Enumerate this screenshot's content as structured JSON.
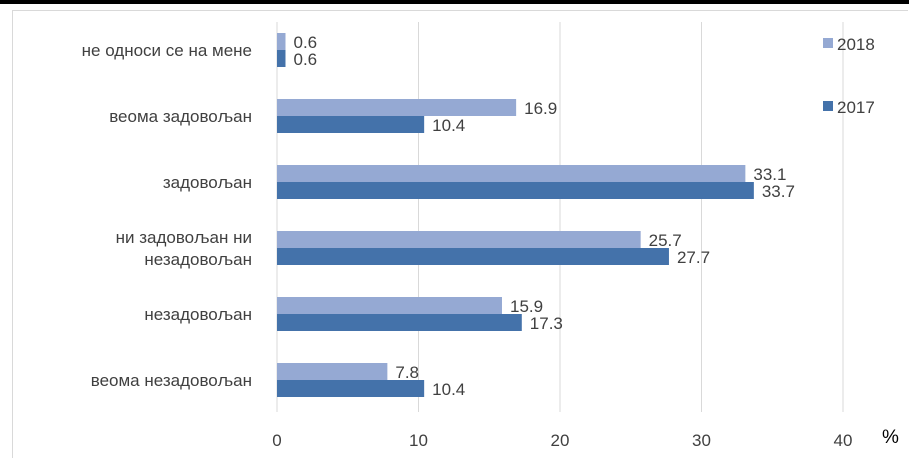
{
  "chart_data": {
    "type": "bar",
    "orientation": "horizontal",
    "categories": [
      [
        "не односи се на мене"
      ],
      [
        "веома задовољан"
      ],
      [
        "задовољан"
      ],
      [
        "ни задовољан ни",
        "незадовољан"
      ],
      [
        "незадовољан"
      ],
      [
        "веома незадовољан"
      ]
    ],
    "series": [
      {
        "name": "2018",
        "color": "#95a9d3",
        "values": [
          0.6,
          16.9,
          33.1,
          25.7,
          15.9,
          7.8
        ]
      },
      {
        "name": "2017",
        "color": "#4472aa",
        "values": [
          0.6,
          10.4,
          33.7,
          27.7,
          17.3,
          10.4
        ]
      }
    ],
    "value_labels": {
      "2018": [
        "0.6",
        "16.9",
        "33.1",
        "25.7",
        "15.9",
        "7.8"
      ],
      "2017": [
        "0.6",
        "10.4",
        "33.7",
        "27.7",
        "17.3",
        "10.4"
      ]
    },
    "xlim": [
      0,
      40
    ],
    "xticks": [
      0,
      10,
      20,
      30,
      40
    ],
    "xlabel": "%",
    "grid": true,
    "legend_position": "right"
  }
}
